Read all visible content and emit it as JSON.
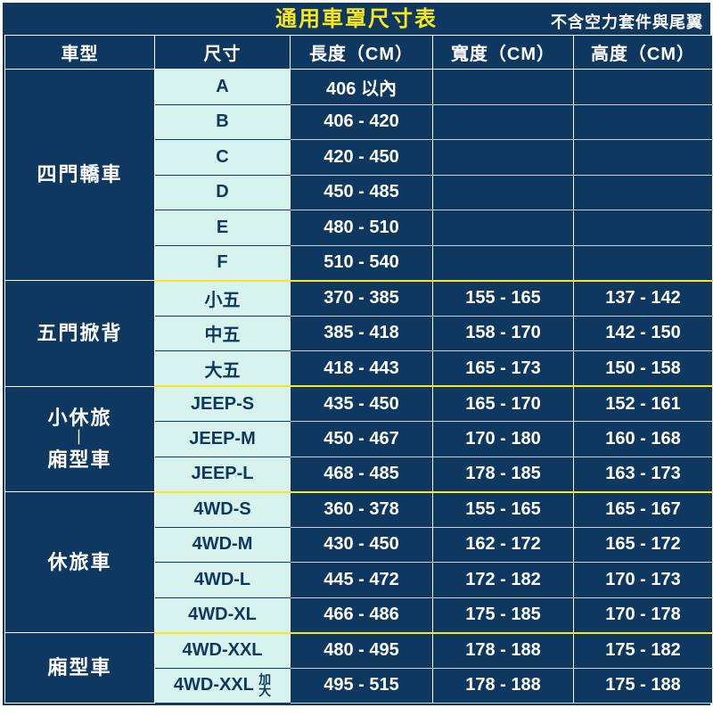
{
  "title": "通用車罩尺寸表",
  "note": "不含空力套件與尾翼",
  "columns": {
    "category": "車型",
    "size": "尺寸",
    "length": "長度（CM）",
    "width": "寬度（CM）",
    "height": "高度（CM）"
  },
  "colors": {
    "bg_primary": "#0f3860",
    "accent_yellow": "#f9e71e",
    "size_cell_bg": "#d7f3ed",
    "text_light": "#ffffff"
  },
  "groups": [
    {
      "name": "四門轎車",
      "rows": [
        {
          "size": "A",
          "length": "406 以內",
          "width": "",
          "height": ""
        },
        {
          "size": "B",
          "length": "406 - 420",
          "width": "",
          "height": ""
        },
        {
          "size": "C",
          "length": "420 - 450",
          "width": "",
          "height": ""
        },
        {
          "size": "D",
          "length": "450 - 485",
          "width": "",
          "height": ""
        },
        {
          "size": "E",
          "length": "480 - 510",
          "width": "",
          "height": ""
        },
        {
          "size": "F",
          "length": "510 - 540",
          "width": "",
          "height": ""
        }
      ]
    },
    {
      "name": "五門掀背",
      "rows": [
        {
          "size": "小五",
          "length": "370 - 385",
          "width": "155 - 165",
          "height": "137 - 142"
        },
        {
          "size": "中五",
          "length": "385 - 418",
          "width": "158 - 170",
          "height": "142 - 150"
        },
        {
          "size": "大五",
          "length": "418 - 443",
          "width": "165 - 173",
          "height": "150 - 158"
        }
      ]
    },
    {
      "name": "小休旅",
      "name2": "廂型車",
      "rows": [
        {
          "size": "JEEP-S",
          "length": "435 - 450",
          "width": "165 - 170",
          "height": "152 - 161"
        },
        {
          "size": "JEEP-M",
          "length": "450 - 467",
          "width": "170 - 180",
          "height": "160 - 168"
        },
        {
          "size": "JEEP-L",
          "length": "468 - 485",
          "width": "178 - 185",
          "height": "163 - 173"
        }
      ]
    },
    {
      "name": "休旅車",
      "rows": [
        {
          "size": "4WD-S",
          "length": "360 - 378",
          "width": "155 - 165",
          "height": "165 - 167"
        },
        {
          "size": "4WD-M",
          "length": "430 - 450",
          "width": "162 - 172",
          "height": "165 - 172"
        },
        {
          "size": "4WD-L",
          "length": "445 - 472",
          "width": "172 - 182",
          "height": "170 - 173"
        },
        {
          "size": "4WD-XL",
          "length": "466 - 486",
          "width": "175 - 185",
          "height": "170 - 178"
        }
      ]
    },
    {
      "name": "廂型車",
      "rows": [
        {
          "size": "4WD-XXL",
          "length": "480 - 495",
          "width": "178 - 188",
          "height": "175 - 182"
        },
        {
          "size": "4WD-XXL",
          "size_extra": "加大",
          "length": "495 - 515",
          "width": "178 - 188",
          "height": "175 - 188"
        }
      ]
    }
  ]
}
